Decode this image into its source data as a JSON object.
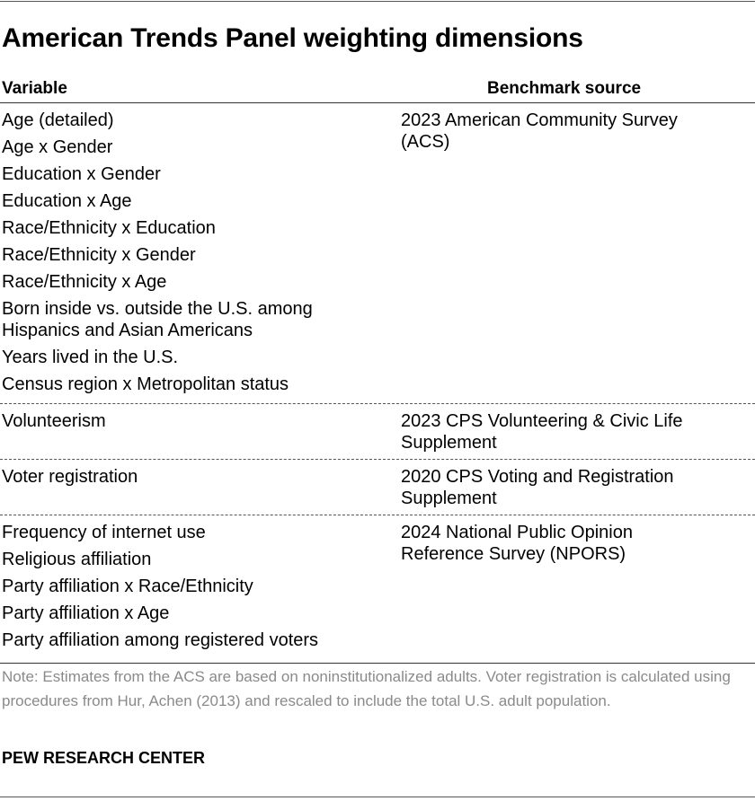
{
  "title": "American Trends Panel weighting dimensions",
  "table": {
    "headers": [
      "Variable",
      "Benchmark source"
    ],
    "groups": [
      {
        "variables": [
          "Age (detailed)",
          "Age x Gender",
          "Education x Gender",
          "Education x Age",
          "Race/Ethnicity x Education",
          "Race/Ethnicity x Gender",
          "Race/Ethnicity x Age",
          "Born inside vs. outside the U.S. among Hispanics and Asian Americans",
          "Years lived in the U.S.",
          "Census region x Metropolitan status"
        ],
        "source": "2023 American Community Survey (ACS)"
      },
      {
        "variables": [
          "Volunteerism"
        ],
        "source": "2023 CPS Volunteering & Civic Life Supplement"
      },
      {
        "variables": [
          "Voter registration"
        ],
        "source": "2020 CPS Voting and Registration Supplement"
      },
      {
        "variables": [
          "Frequency of internet use",
          "Religious affiliation",
          "Party affiliation x Race/Ethnicity",
          "Party affiliation x Age",
          "Party affiliation among registered voters"
        ],
        "source": "2024 National Public Opinion Reference Survey (NPORS)"
      }
    ]
  },
  "note": "Note: Estimates from the ACS are based on noninstitutionalized adults. Voter registration is calculated using procedures from Hur, Achen (2013) and rescaled to include the total U.S. adult population.",
  "footer": "PEW RESEARCH CENTER"
}
